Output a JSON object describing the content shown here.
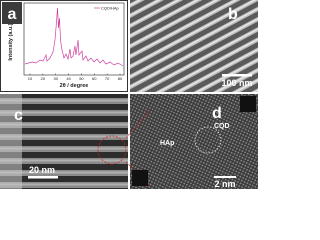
{
  "panels": [
    {
      "label": "a",
      "y_axis": "Intensity (a.u.)",
      "x_axis": "2θ / degree",
      "legend": "CQD/HAp",
      "xticks": [
        "10",
        "20",
        "30",
        "40",
        "50",
        "60",
        "70",
        "80"
      ]
    },
    {
      "label": "b",
      "scale_bar": "100 nm"
    },
    {
      "label": "c",
      "scale_bar": "20 nm"
    },
    {
      "label": "d",
      "scale_bar": "2 nm",
      "annotations": [
        "CQD",
        "HAp"
      ]
    }
  ]
}
